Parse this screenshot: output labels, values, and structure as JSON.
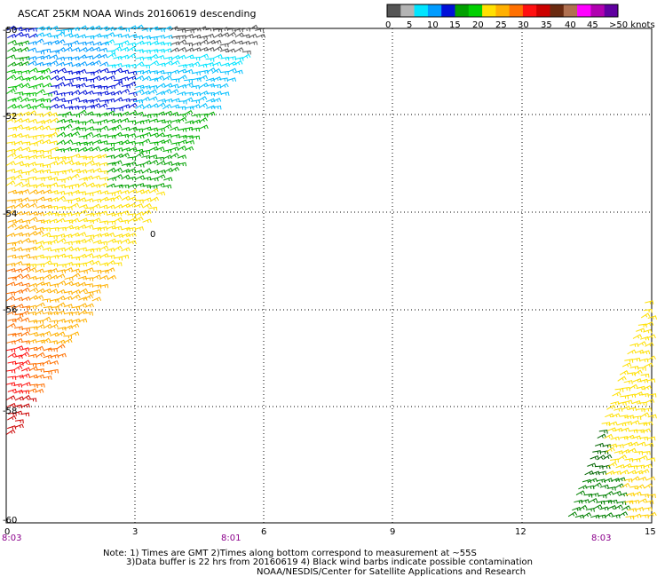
{
  "title": "ASCAT 25KM NOAA Winds 20160619 descending",
  "legend": {
    "colors": [
      "#555555",
      "#b4b4b4",
      "#00e5ff",
      "#009cff",
      "#0010d8",
      "#00a000",
      "#00d000",
      "#ffe000",
      "#ffb000",
      "#ff7000",
      "#ff1010",
      "#cc0000",
      "#6a2a10",
      "#b07050",
      "#ff00ff",
      "#b000b0",
      "#6000a0"
    ],
    "labels": [
      "0",
      "5",
      "10",
      "15",
      "20",
      "25",
      "30",
      "35",
      "40",
      "45",
      ">50 knots"
    ]
  },
  "axes": {
    "y_labels": [
      "-50",
      "-52",
      "-54",
      "-56",
      "-58",
      "-60"
    ],
    "x_labels": [
      "0",
      "3",
      "6",
      "9",
      "12",
      "15"
    ]
  },
  "times": [
    "8:03",
    "8:01",
    "8:03"
  ],
  "marker": "0",
  "notes": [
    "Note: 1) Times are GMT 2)Times along bottom correspond to measurement at ~55S",
    "3)Data buffer is 22 hrs from 20160619 4) Black wind barbs indicate possible contamination",
    "NOAA/NESDIS/Center for Satellite Applications and Research"
  ]
}
